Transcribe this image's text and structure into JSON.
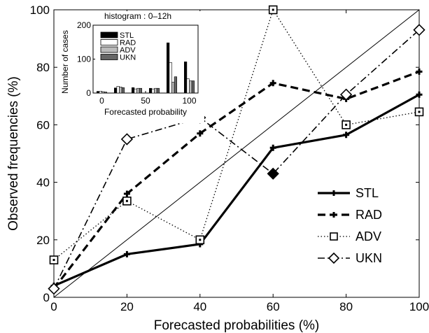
{
  "chart_data": [
    {
      "type": "line",
      "title": "",
      "xlabel": "Forecasted probabilities (%)",
      "ylabel": "Observed frequencies (%)",
      "xlim": [
        0,
        100
      ],
      "ylim": [
        0,
        100
      ],
      "x_ticks": [
        "0",
        "20",
        "40",
        "60",
        "80",
        "100"
      ],
      "y_ticks": [
        "0",
        "20",
        "40",
        "60",
        "80",
        "100"
      ],
      "x": [
        0,
        20,
        40,
        60,
        80,
        100
      ],
      "reference_line": "diagonal y = x",
      "legend_position": "bottom-right",
      "series": [
        {
          "name": "STL",
          "values": [
            4,
            15,
            18.5,
            52,
            56.5,
            70.5
          ],
          "style": "solid",
          "marker": "plus"
        },
        {
          "name": "RAD",
          "values": [
            3,
            36,
            57,
            74.5,
            69,
            78.5
          ],
          "style": "dashed",
          "marker": "plus"
        },
        {
          "name": "ADV",
          "values": [
            13,
            33.5,
            20,
            100,
            60,
            64.5
          ],
          "style": "dotted",
          "marker": "square"
        },
        {
          "name": "UKN",
          "values": [
            3,
            55,
            62.5,
            43,
            70.5,
            93
          ],
          "style": "dash-dot",
          "marker": "diamond"
        }
      ]
    },
    {
      "type": "bar",
      "title": "histogram : 0–12h",
      "xlabel": "Forecasted probability",
      "ylabel": "Number of cases",
      "xlim": [
        -10,
        110
      ],
      "ylim": [
        0,
        200
      ],
      "x_ticks": [
        "0",
        "50",
        "100"
      ],
      "y_ticks": [
        "0",
        "100",
        "200"
      ],
      "categories": [
        0,
        20,
        40,
        60,
        80,
        100
      ],
      "legend_position": "top-left",
      "series": [
        {
          "name": "STL",
          "color": "#000000",
          "values": [
            5,
            15,
            16,
            14,
            148,
            92
          ]
        },
        {
          "name": "RAD",
          "color": "#ffffff",
          "values": [
            5,
            20,
            12,
            12,
            90,
            42
          ]
        },
        {
          "name": "ADV",
          "color": "#bbbbbb",
          "values": [
            4,
            18,
            14,
            14,
            32,
            36
          ]
        },
        {
          "name": "UKN",
          "color": "#666666",
          "values": [
            3,
            16,
            14,
            14,
            48,
            36
          ]
        }
      ]
    }
  ]
}
